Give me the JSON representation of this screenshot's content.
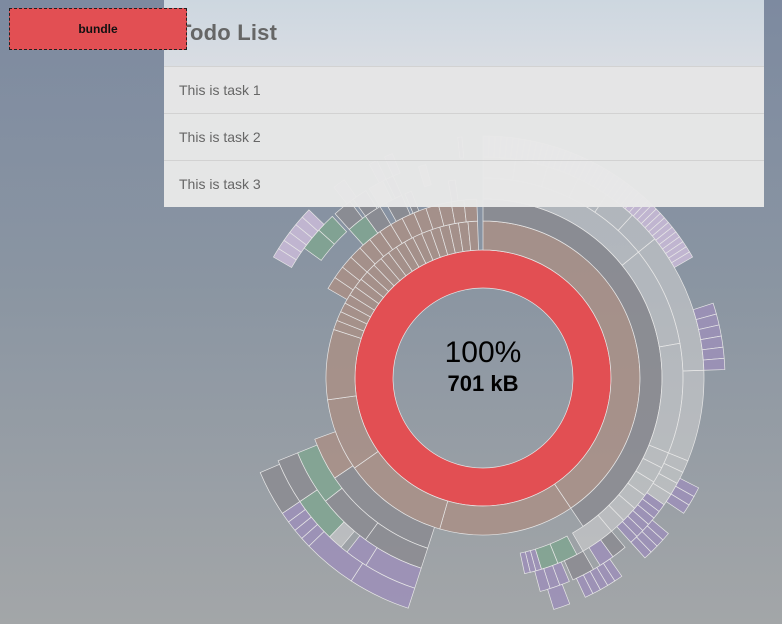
{
  "todo": {
    "title": "Todo List",
    "tasks": [
      "This is task 1",
      "This is task 2",
      "This is task 3"
    ]
  },
  "bundle_label": "bundle",
  "center": {
    "percent": "100%",
    "size": "701 kB"
  },
  "colors": {
    "bundle": "#e24f53",
    "module": "#a98f86",
    "grey": "#8b8b90",
    "green": "#80a590",
    "purple": "#9c8fb8",
    "light_purple": "#cabbd8",
    "light_grey": "#d4d4d4"
  }
}
